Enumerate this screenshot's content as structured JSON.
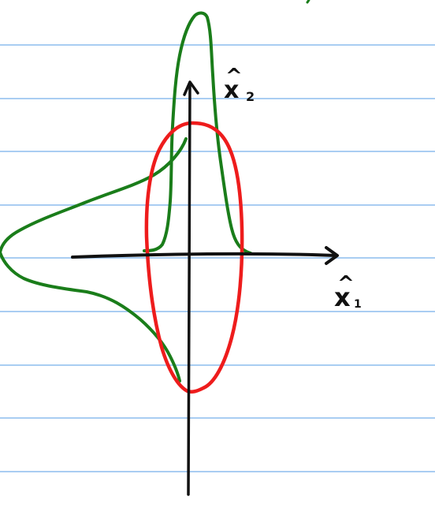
{
  "colors": {
    "background": "#ffffff",
    "ruled_line": "#a9cdf2",
    "axes": "#111111",
    "ellipse": "#ee1c1c",
    "distribution": "#1a7d1a"
  },
  "labels": {
    "x2": {
      "hat": "^",
      "main": "x",
      "sub": "2"
    },
    "x1": {
      "hat": "^",
      "main": "x",
      "sub": "1"
    }
  }
}
